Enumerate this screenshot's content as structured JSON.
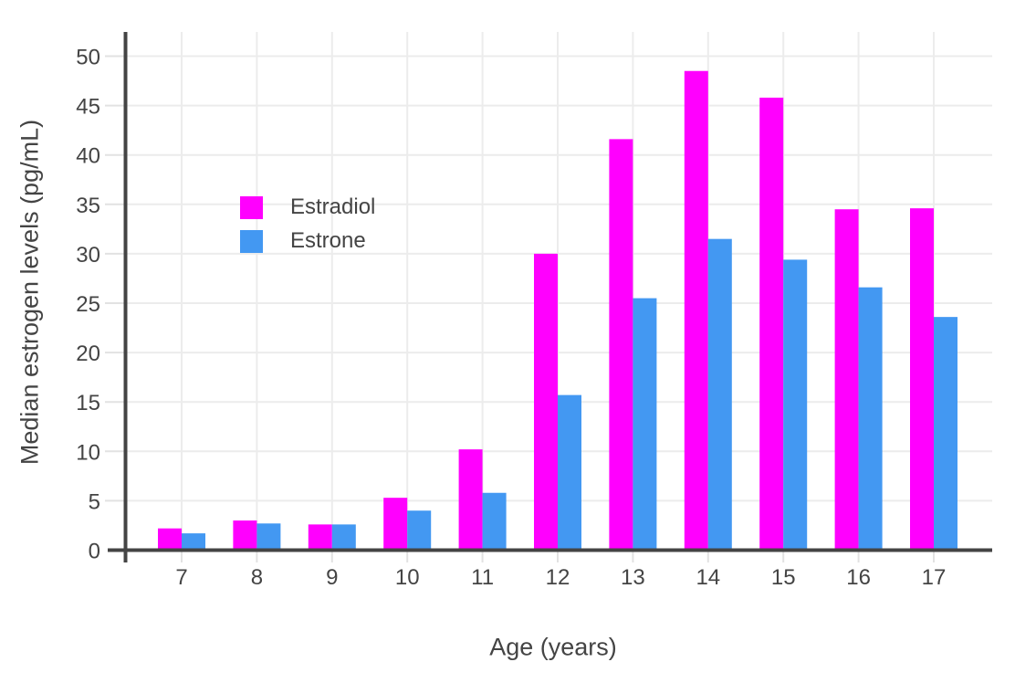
{
  "chart_data": {
    "type": "bar",
    "categories": [
      7,
      8,
      9,
      10,
      11,
      12,
      13,
      14,
      15,
      16,
      17
    ],
    "series": [
      {
        "name": "Estradiol",
        "color": "#FF00FE",
        "values": [
          2.2,
          3.0,
          2.6,
          5.3,
          10.2,
          30.0,
          41.6,
          48.5,
          45.8,
          34.5,
          34.6
        ]
      },
      {
        "name": "Estrone",
        "color": "#4398F2",
        "values": [
          1.7,
          2.7,
          2.6,
          4.0,
          5.8,
          15.7,
          25.5,
          31.5,
          29.4,
          26.6,
          23.6
        ]
      }
    ],
    "title": "",
    "xlabel": "Age (years)",
    "ylabel": "Median estrogen levels (pg/mL)",
    "ylim": [
      0,
      52.5
    ],
    "yticks": [
      0,
      5,
      10,
      15,
      20,
      25,
      30,
      35,
      40,
      45,
      50
    ],
    "grid": true,
    "legend_position": "inside-top-left",
    "bar_mode": "grouped",
    "axis_color": "#444444",
    "grid_color": "#ECECEC",
    "tick_color": "#E2E2E2",
    "background": "#FFFFFF"
  }
}
